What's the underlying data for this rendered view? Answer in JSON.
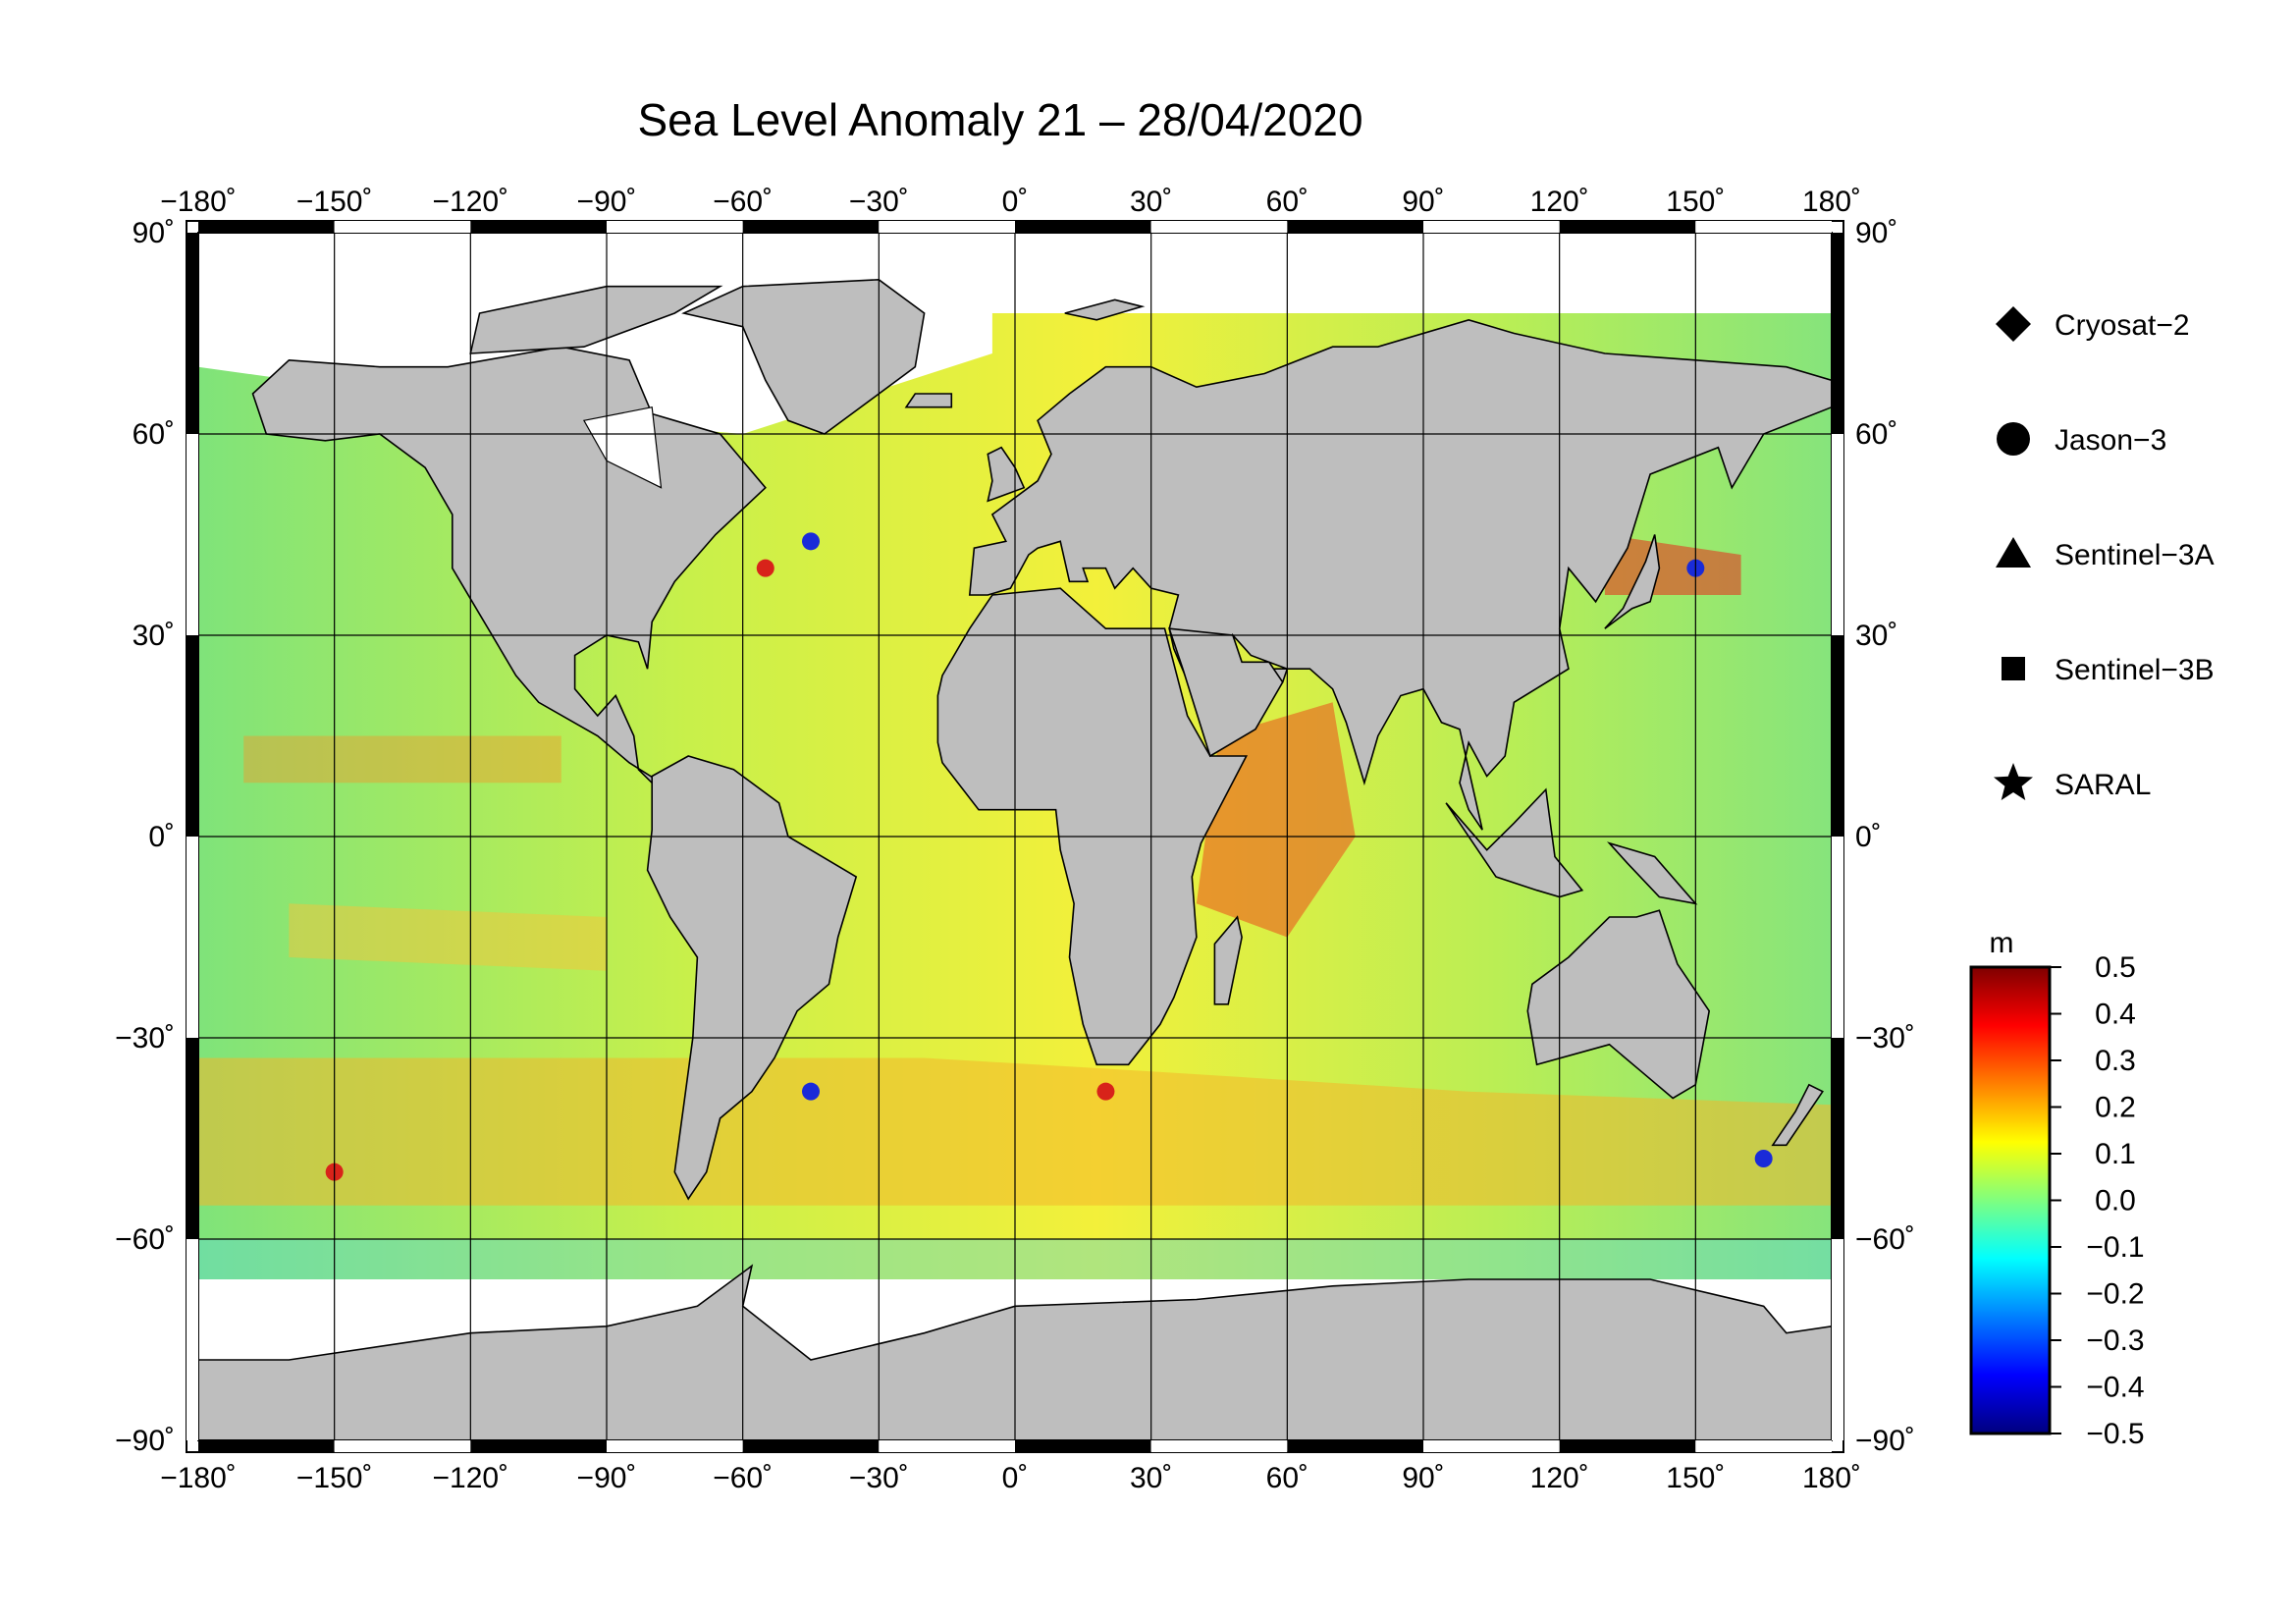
{
  "title": "Sea Level Anomaly 21 – 28/04/2020",
  "map": {
    "projection": "equirectangular",
    "lon_range": [
      -180,
      180
    ],
    "lat_range": [
      -90,
      90
    ],
    "lon_ticks": [
      -180,
      -150,
      -120,
      -90,
      -60,
      -30,
      0,
      30,
      60,
      90,
      120,
      150,
      180
    ],
    "lat_ticks": [
      90,
      60,
      30,
      0,
      -30,
      -60,
      -90
    ],
    "lon_labels": [
      "−180˚",
      "−150˚",
      "−120˚",
      "−90˚",
      "−60˚",
      "−30˚",
      "0˚",
      "30˚",
      "60˚",
      "90˚",
      "120˚",
      "150˚",
      "180˚"
    ],
    "lat_labels": [
      "90˚",
      "60˚",
      "30˚",
      "0˚",
      "−30˚",
      "−60˚",
      "−90˚"
    ],
    "grid": true,
    "land_color": "#bebebe",
    "ice_color": "#ffffff",
    "frame_color": "#000000"
  },
  "legend": {
    "items": [
      {
        "label": "Cryosat−2",
        "symbol": "diamond-icon"
      },
      {
        "label": "Jason−3",
        "symbol": "circle-icon"
      },
      {
        "label": "Sentinel−3A",
        "symbol": "triangle-icon"
      },
      {
        "label": "Sentinel−3B",
        "symbol": "square-icon"
      },
      {
        "label": "SARAL",
        "symbol": "star-icon"
      }
    ]
  },
  "colorbar": {
    "unit": "m",
    "min": -0.5,
    "max": 0.5,
    "tick_values": [
      0.5,
      0.4,
      0.3,
      0.2,
      0.1,
      0.0,
      -0.1,
      -0.2,
      -0.3,
      -0.4,
      -0.5
    ],
    "tick_labels": [
      "0.5",
      "0.4",
      "0.3",
      "0.2",
      "0.1",
      "0.0",
      "−0.1",
      "−0.2",
      "−0.3",
      "−0.4",
      "−0.5"
    ],
    "colors": [
      "#00007f",
      "#0000ff",
      "#007fff",
      "#00ffff",
      "#7fff7f",
      "#ffff00",
      "#ff7f00",
      "#ff0000",
      "#7f0000"
    ]
  },
  "chart_data": {
    "type": "heatmap",
    "title": "Sea Level Anomaly 21 – 28/04/2020",
    "xlabel": "",
    "ylabel": "",
    "x_range": [
      -180,
      180
    ],
    "y_range": [
      -90,
      90
    ],
    "value_unit": "m",
    "value_range": [
      -0.5,
      0.5
    ],
    "grid": true,
    "legend_position": "right",
    "series": [
      {
        "name": "Cryosat−2"
      },
      {
        "name": "Jason−3"
      },
      {
        "name": "Sentinel−3A"
      },
      {
        "name": "Sentinel−3B"
      },
      {
        "name": "SARAL"
      }
    ]
  }
}
